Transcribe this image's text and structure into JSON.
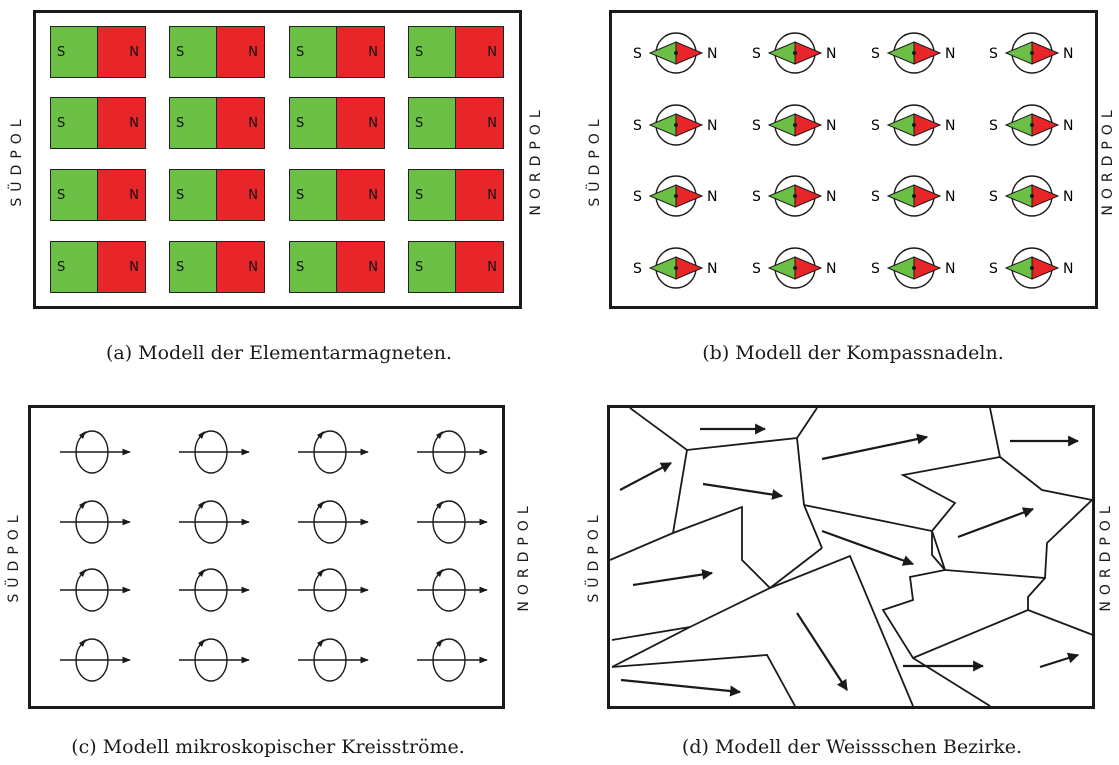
{
  "labels": {
    "south_pole": "SÜDPOL",
    "north_pole": "NORDPOL",
    "south_short": "S",
    "north_short": "N"
  },
  "captions": {
    "a": "(a)  Modell der Elementarmagneten.",
    "b": "(b)  Modell der Kompassnadeln.",
    "c": "(c)  Modell mikroskopischer Kreisströme.",
    "d": "(d)  Modell der Weissschen Bezirke."
  },
  "colors": {
    "south": "#6bbf45",
    "north": "#e8262a",
    "line": "#1a1a1a"
  },
  "grid": {
    "rows": 4,
    "cols": 4
  }
}
